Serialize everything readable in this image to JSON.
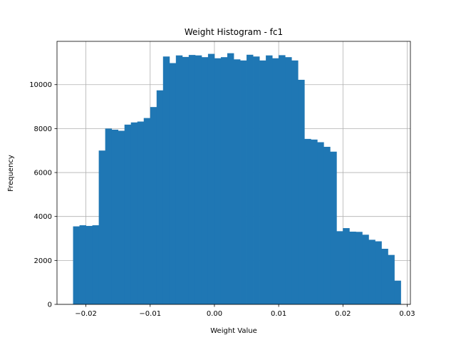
{
  "chart_data": {
    "type": "bar",
    "title": "Weight Histogram - fc1",
    "xlabel": "Weight Value",
    "ylabel": "Frequency",
    "xlim": [
      -0.0245,
      0.0305
    ],
    "ylim": [
      0,
      11970
    ],
    "grid": true,
    "bar_color": "#1f77b4",
    "grid_color": "#b0b0b0",
    "bin_start": -0.022,
    "bin_width": 0.001,
    "values": [
      3550,
      3600,
      3570,
      3600,
      7000,
      8000,
      7950,
      7900,
      8180,
      8280,
      8320,
      8480,
      8980,
      9740,
      11280,
      10980,
      11330,
      11260,
      11350,
      11330,
      11250,
      11400,
      11200,
      11250,
      11430,
      11150,
      11100,
      11360,
      11280,
      11100,
      11330,
      11200,
      11340,
      11250,
      11100,
      10220,
      7530,
      7500,
      7380,
      7170,
      6950,
      3330,
      3470,
      3310,
      3300,
      3170,
      2940,
      2870,
      2530,
      2250,
      1080
    ],
    "xticks": [
      {
        "value": -0.02,
        "label": "−0.02"
      },
      {
        "value": -0.01,
        "label": "−0.01"
      },
      {
        "value": 0.0,
        "label": "0.00"
      },
      {
        "value": 0.01,
        "label": "0.01"
      },
      {
        "value": 0.02,
        "label": "0.02"
      },
      {
        "value": 0.03,
        "label": "0.03"
      }
    ],
    "yticks": [
      {
        "value": 0,
        "label": "0"
      },
      {
        "value": 2000,
        "label": "2000"
      },
      {
        "value": 4000,
        "label": "4000"
      },
      {
        "value": 6000,
        "label": "6000"
      },
      {
        "value": 8000,
        "label": "8000"
      },
      {
        "value": 10000,
        "label": "10000"
      }
    ]
  }
}
